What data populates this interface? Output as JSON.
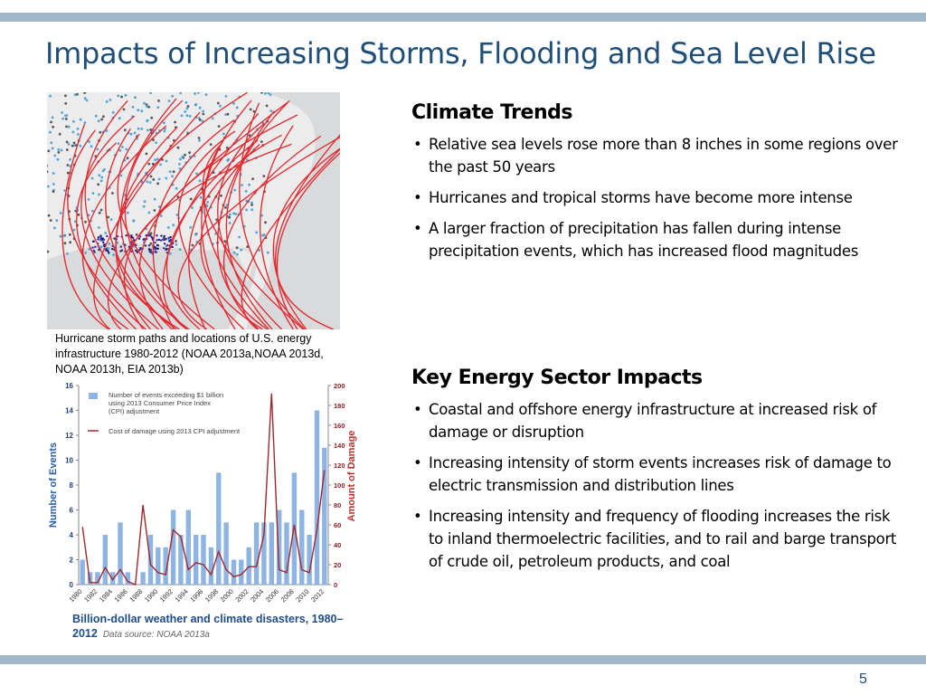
{
  "slide": {
    "title": "Impacts of Increasing Storms, Flooding and Sea Level Rise",
    "page_number": "5"
  },
  "map": {
    "caption": "Hurricane storm paths and locations of  U.S. energy infrastructure 1980-2012 (NOAA 2013a,NOAA 2013d, NOAA 2013h, EIA 2013b)",
    "track_color": "#e4262c",
    "infrastructure_color": "#4fa3d9"
  },
  "climate_trends": {
    "heading": "Climate Trends",
    "bullets": [
      "Relative sea levels rose more than 8 inches in some regions over the past 50 years",
      "Hurricanes and tropical storms have become more intense",
      "A larger fraction of  precipitation has fallen during intense precipitation events, which has increased flood magnitudes"
    ]
  },
  "energy_impacts": {
    "heading": "Key Energy Sector Impacts",
    "bullets": [
      "Coastal and offshore energy infrastructure at increased risk of damage or disruption",
      "Increasing intensity of storm events increases risk of damage to electric transmission and distribution lines",
      "Increasing  intensity and frequency of flooding increases the risk to inland thermoelectric facilities, and to rail and barge transport  of crude oil, petroleum products, and coal"
    ]
  },
  "chart_caption": {
    "title": "Billion-dollar weather and climate disasters, 1980–2012",
    "source": "Data source: NOAA 2013a"
  },
  "chart_data": {
    "type": "bar",
    "title": "",
    "ylabel": "Number of Events",
    "y2label": "Amount of Damage",
    "ylim": [
      0,
      16
    ],
    "y2lim": [
      0,
      200
    ],
    "yticks": [
      0,
      2,
      4,
      6,
      8,
      10,
      12,
      14,
      16
    ],
    "y2ticks": [
      0,
      20,
      40,
      60,
      80,
      100,
      120,
      140,
      160,
      180,
      200
    ],
    "x": [
      1980,
      1981,
      1982,
      1983,
      1984,
      1985,
      1986,
      1987,
      1988,
      1989,
      1990,
      1991,
      1992,
      1993,
      1994,
      1995,
      1996,
      1997,
      1998,
      1999,
      2000,
      2001,
      2002,
      2003,
      2004,
      2005,
      2006,
      2007,
      2008,
      2009,
      2010,
      2011,
      2012
    ],
    "xtick_labels": [
      "1980",
      "1982",
      "1984",
      "1986",
      "1988",
      "1990",
      "1992",
      "1994",
      "1996",
      "1998",
      "2000",
      "2002",
      "2004",
      "2006",
      "2008",
      "2010",
      "2012"
    ],
    "series": [
      {
        "name": "Number of events exceeding $1 billion using 2013 Consumer Price Index (CPI) adjustment",
        "kind": "bar",
        "color": "#8eb4e3",
        "values": [
          2,
          1,
          1,
          4,
          1,
          5,
          1,
          0,
          1,
          4,
          3,
          3,
          6,
          4,
          6,
          4,
          4,
          3,
          9,
          5,
          2,
          2,
          3,
          5,
          5,
          5,
          6,
          5,
          9,
          6,
          4,
          14,
          11
        ]
      },
      {
        "name": "Cost of damage using 2013 CPI adjustment",
        "kind": "line",
        "color": "#a0282d",
        "axis": "right",
        "values": [
          58,
          2,
          2,
          17,
          5,
          15,
          3,
          0,
          80,
          20,
          12,
          10,
          55,
          48,
          15,
          22,
          20,
          10,
          33,
          15,
          8,
          10,
          18,
          18,
          50,
          192,
          15,
          12,
          60,
          15,
          12,
          55,
          115
        ]
      }
    ]
  }
}
